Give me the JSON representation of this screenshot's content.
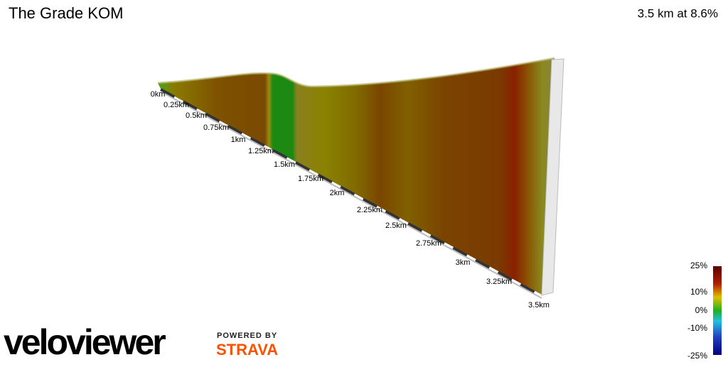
{
  "header": {
    "title": "The Grade KOM",
    "summary": "3.5 km at 8.6%"
  },
  "distance_labels": [
    "0km",
    "0.25km",
    "0.5km",
    "0.75km",
    "1km",
    "1.25km",
    "1.5km",
    "1.75km",
    "2km",
    "2.25km",
    "2.5km",
    "2.75km",
    "3km",
    "3.25km",
    "3.5km"
  ],
  "legend": {
    "labels": [
      "25%",
      "10%",
      "0%",
      "-10%",
      "-25%"
    ]
  },
  "branding": {
    "logo": "veloviewer",
    "powered_by": "POWERED BY",
    "strava": "STRAVA"
  }
}
